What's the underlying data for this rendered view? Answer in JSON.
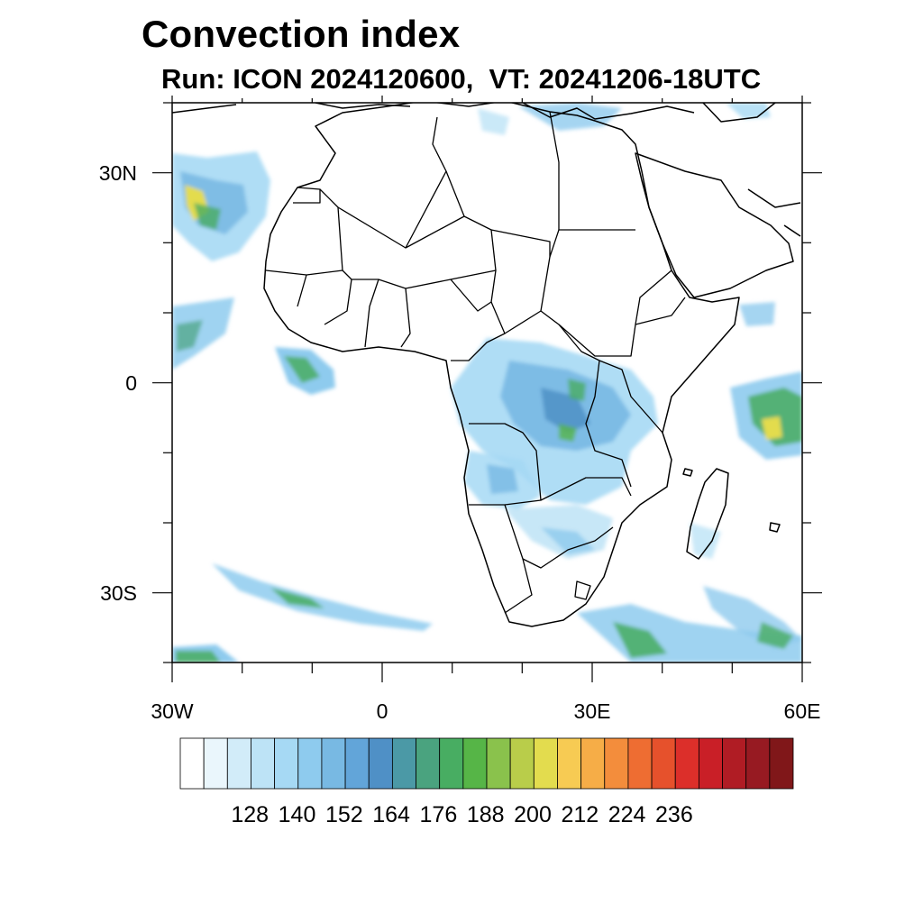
{
  "title": "Convection index",
  "subtitle": "Run: ICON 2024120600,  VT: 20241206-18UTC",
  "map": {
    "x_tick_labels": [
      "30W",
      "0",
      "30E",
      "60E"
    ],
    "y_tick_labels": [
      "30N",
      "0",
      "30S"
    ],
    "lon_range": [
      -30,
      60
    ],
    "lat_range": [
      -40,
      40
    ]
  },
  "colorbar": {
    "labels": [
      "128",
      "140",
      "152",
      "164",
      "176",
      "188",
      "200",
      "212",
      "224",
      "236"
    ],
    "colors": [
      "#ffffff",
      "#eaf6fc",
      "#d2ecf9",
      "#bde3f6",
      "#a6d9f4",
      "#8ecbee",
      "#78b9e3",
      "#62a5d9",
      "#4f90c6",
      "#4b99a6",
      "#4aa37f",
      "#48ad62",
      "#56b547",
      "#8ac24c",
      "#b9cd4a",
      "#e3dc4e",
      "#f7cb53",
      "#f6ad47",
      "#f38d3c",
      "#ee6d32",
      "#e6512c",
      "#dc2f2a",
      "#c91f27",
      "#b01c24",
      "#971a22",
      "#801719"
    ]
  }
}
